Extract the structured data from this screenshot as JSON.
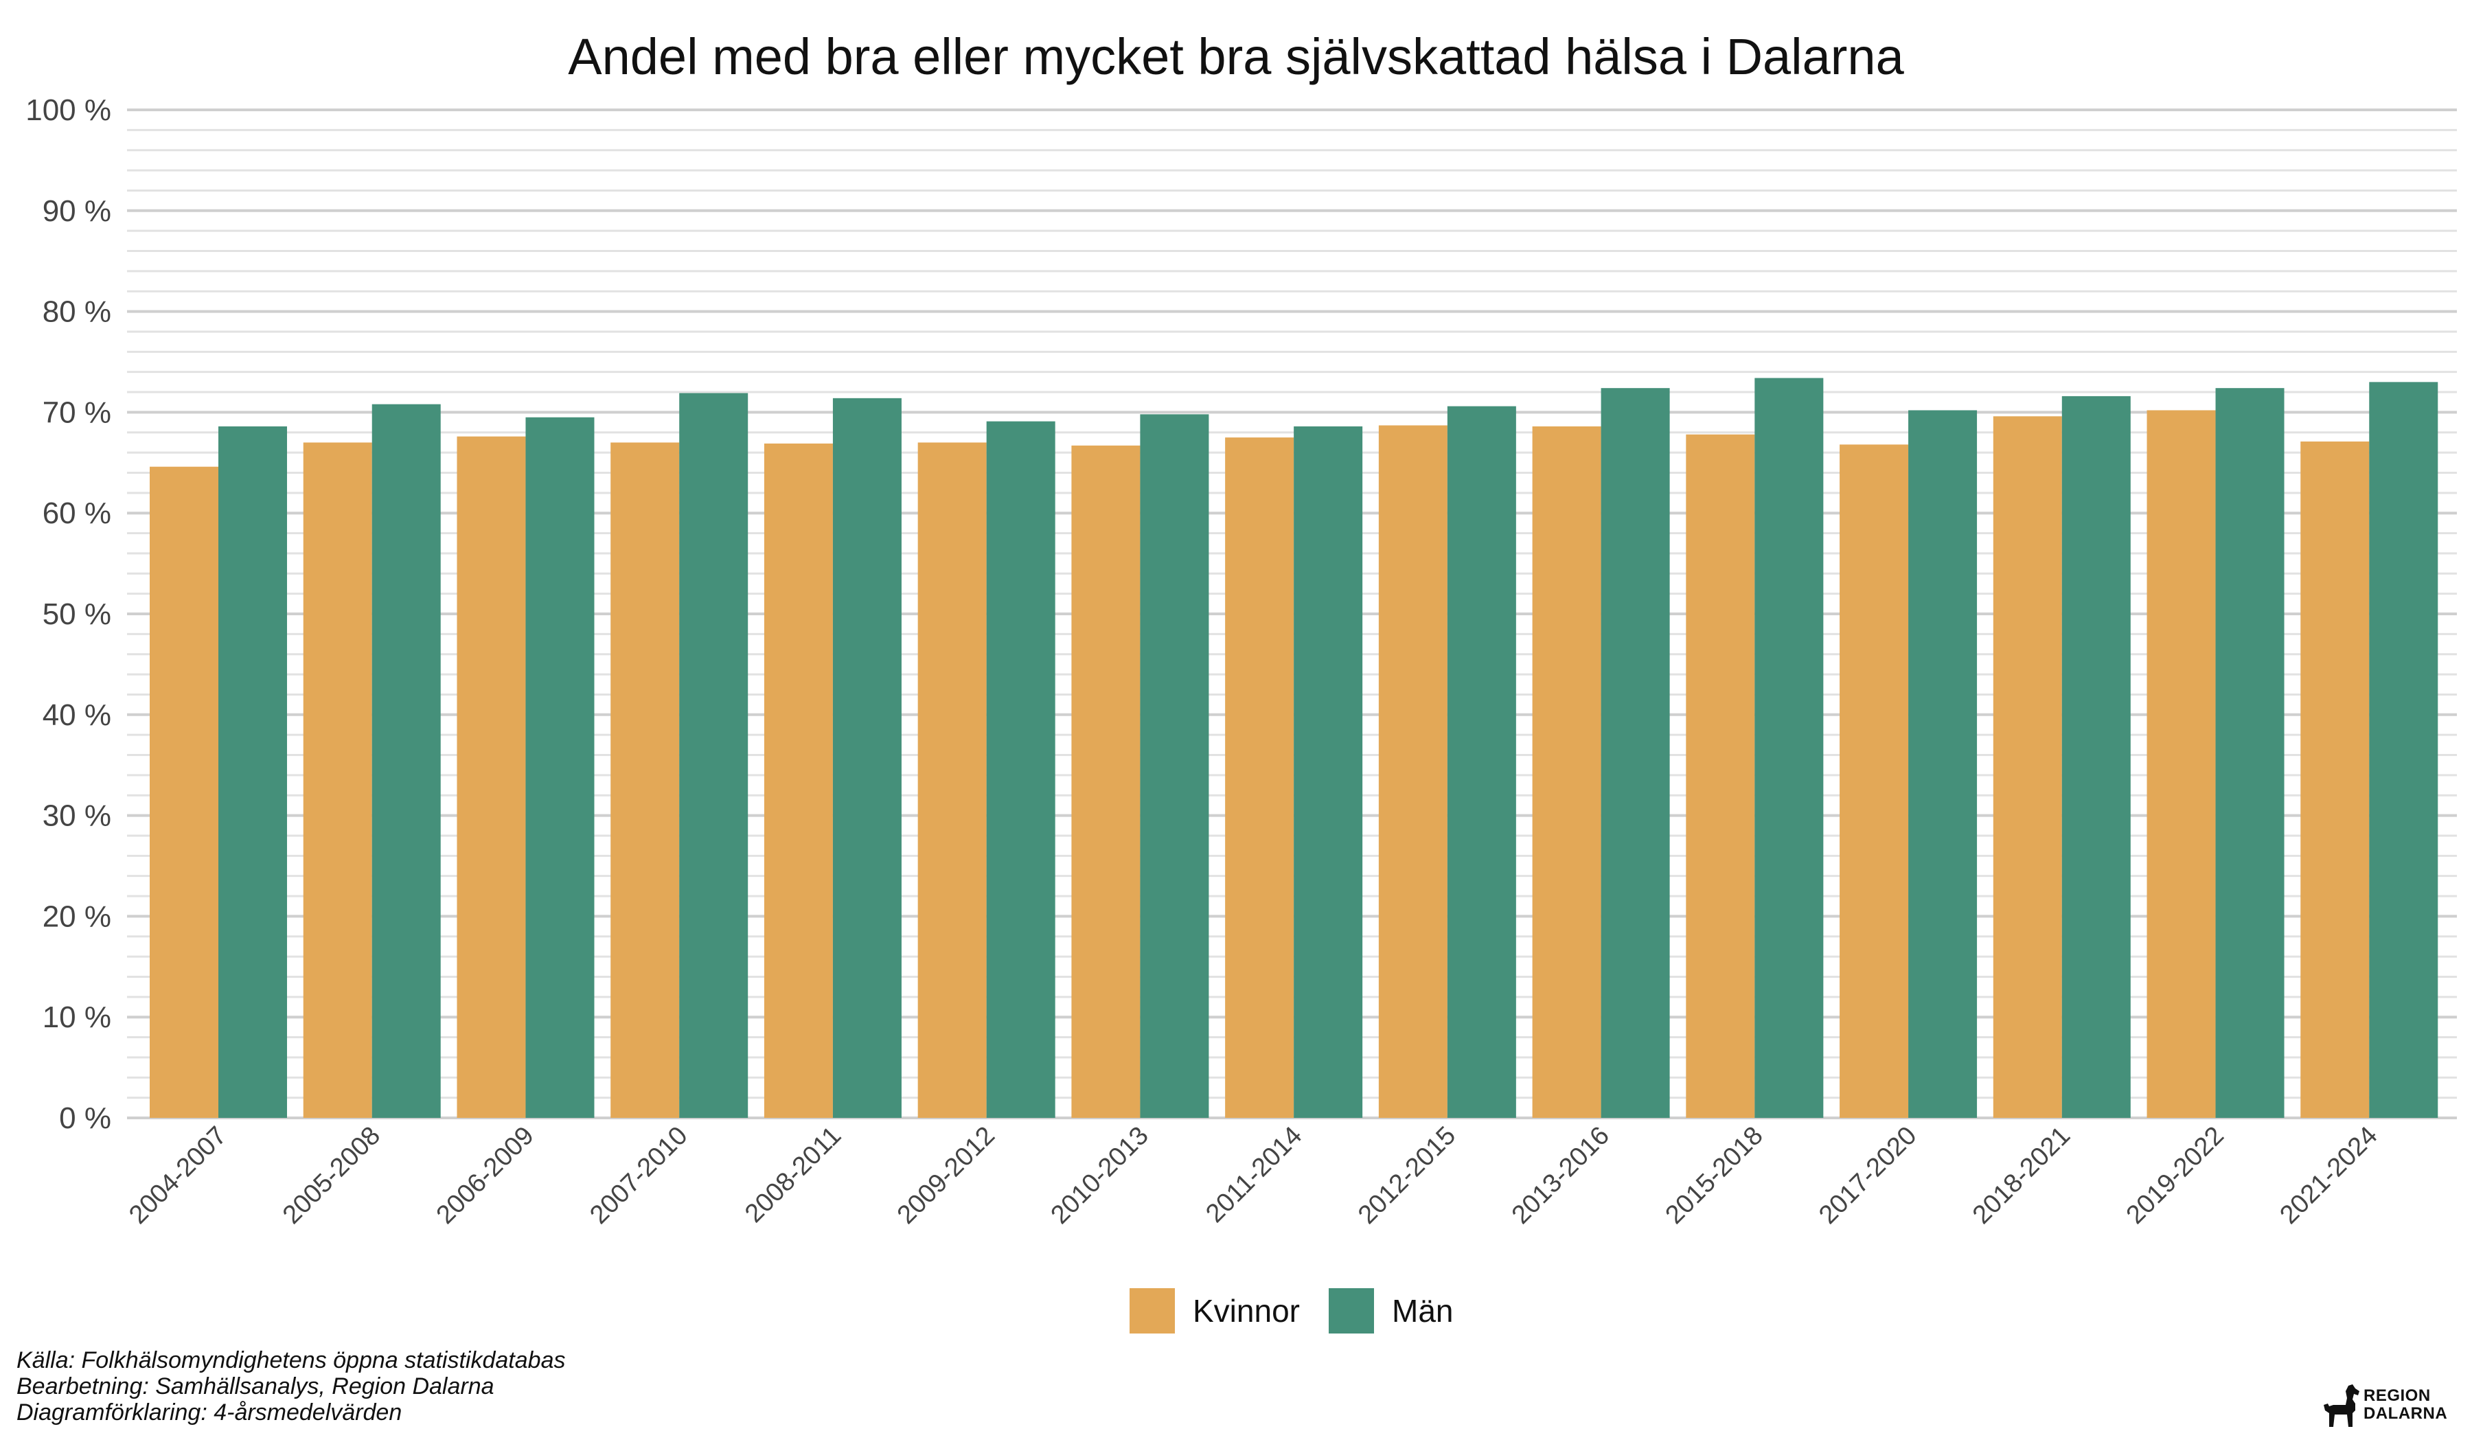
{
  "chart_data": {
    "type": "bar",
    "title": "Andel med bra eller mycket bra självskattad hälsa i Dalarna",
    "xlabel": "",
    "ylabel": "",
    "ylim": [
      0,
      100
    ],
    "ytick_labels": [
      "0 %",
      "10 %",
      "20 %",
      "30 %",
      "40 %",
      "50 %",
      "60 %",
      "70 %",
      "80 %",
      "90 %",
      "100 %"
    ],
    "categories": [
      "2004-2007",
      "2005-2008",
      "2006-2009",
      "2007-2010",
      "2008-2011",
      "2009-2012",
      "2010-2013",
      "2011-2014",
      "2012-2015",
      "2013-2016",
      "2015-2018",
      "2017-2020",
      "2018-2021",
      "2019-2022",
      "2021-2024"
    ],
    "series": [
      {
        "name": "Kvinnor",
        "color": "#E3A857",
        "values": [
          64.6,
          67.0,
          67.6,
          67.0,
          66.9,
          67.0,
          66.7,
          67.5,
          68.7,
          68.6,
          67.8,
          66.8,
          69.6,
          70.2,
          67.1
        ]
      },
      {
        "name": "Män",
        "color": "#45907A",
        "values": [
          68.6,
          70.8,
          69.5,
          71.9,
          71.4,
          69.1,
          69.8,
          68.6,
          70.6,
          72.4,
          73.4,
          70.2,
          71.6,
          72.4,
          73.0
        ]
      }
    ],
    "grid": true,
    "legend_position": "bottom"
  },
  "caption": {
    "source": "Källa: Folkhälsomyndighetens öppna statistikdatabas",
    "processing": "Bearbetning: Samhällsanalys, Region Dalarna",
    "explanation": "Diagramförklaring: 4-årsmedelvärden"
  },
  "logo": {
    "line1": "REGION",
    "line2": "DALARNA"
  }
}
